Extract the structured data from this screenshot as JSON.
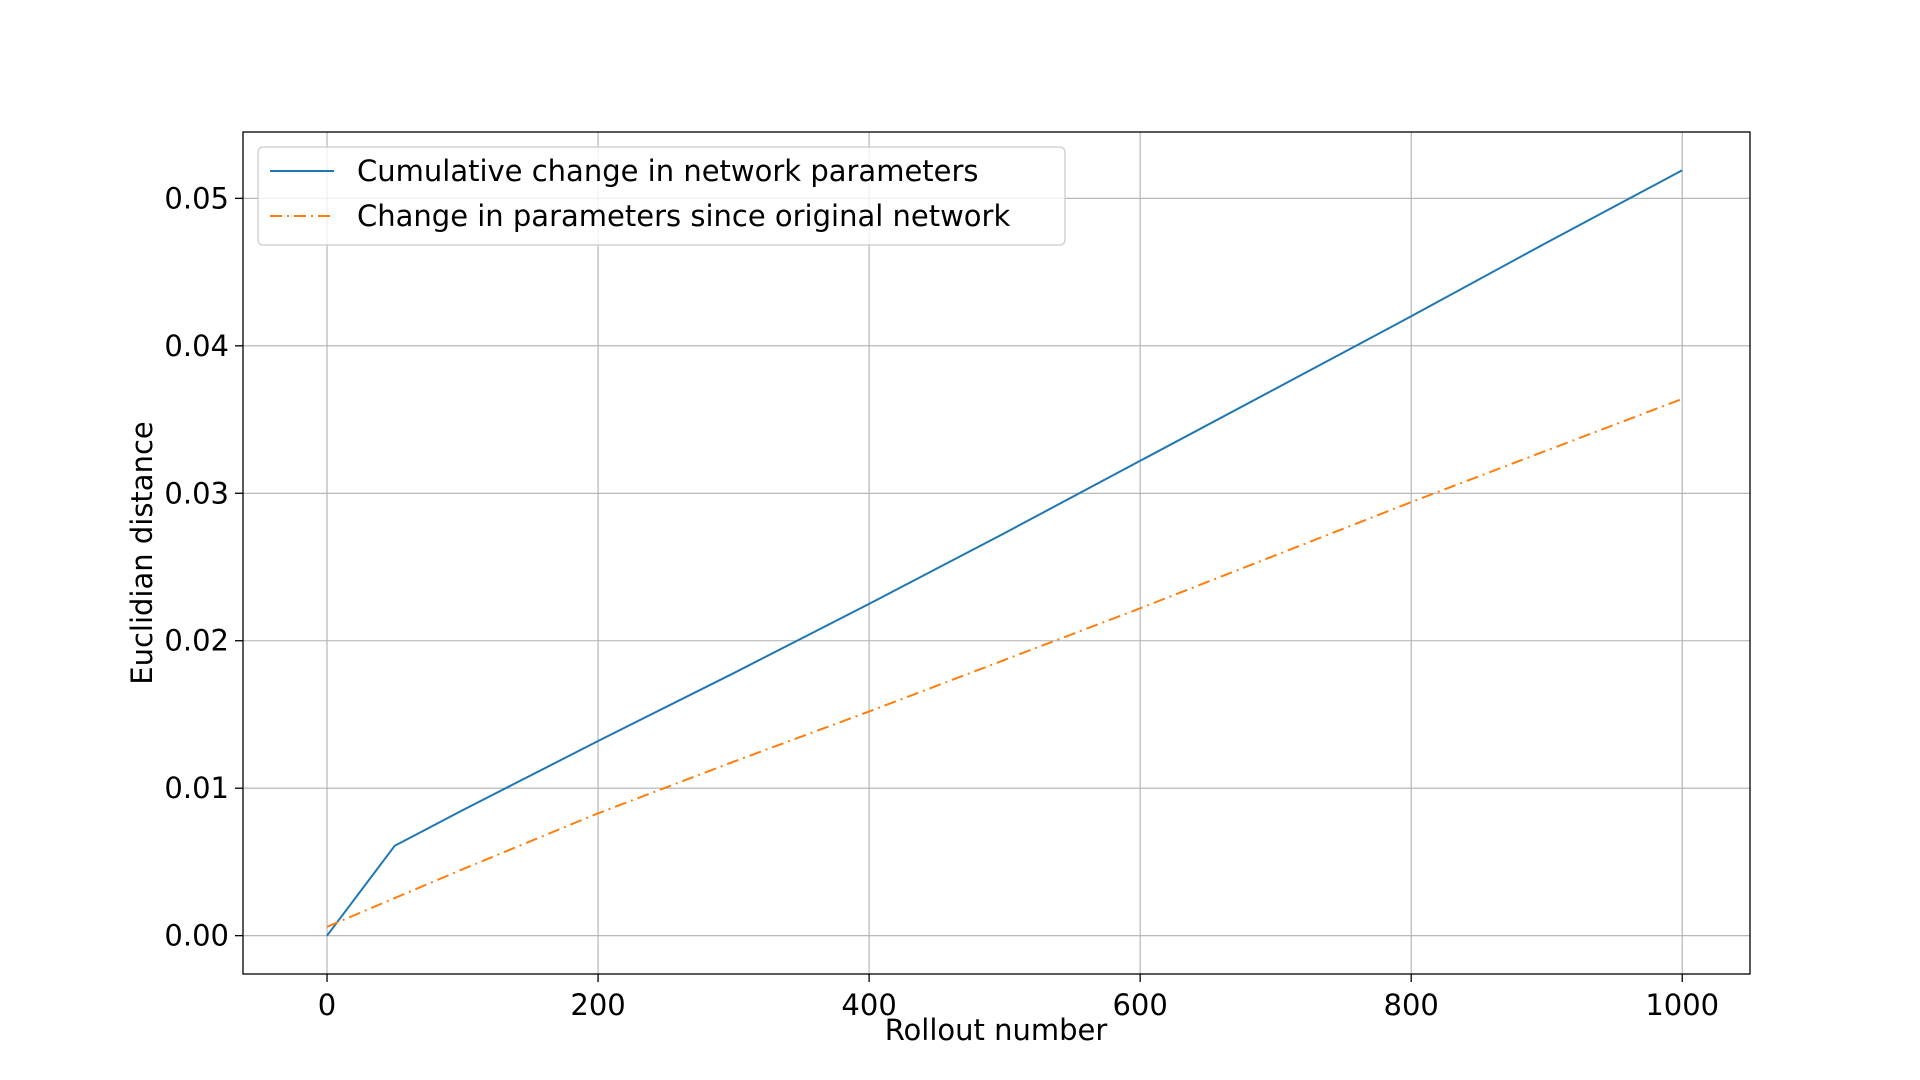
{
  "chart_data": {
    "type": "line",
    "title": "",
    "xlabel": "Rollout number",
    "ylabel": "Euclidian distance",
    "xlim": [
      -62,
      1050
    ],
    "ylim": [
      -0.0026,
      0.0545
    ],
    "xticks": [
      0,
      200,
      400,
      600,
      800,
      1000
    ],
    "xtick_labels": [
      "0",
      "200",
      "400",
      "600",
      "800",
      "1000"
    ],
    "yticks": [
      0.0,
      0.01,
      0.02,
      0.03,
      0.04,
      0.05
    ],
    "ytick_labels": [
      "0.00",
      "0.01",
      "0.02",
      "0.03",
      "0.04",
      "0.05"
    ],
    "grid": true,
    "legend_position": "top-left",
    "series": [
      {
        "name": "Cumulative change in network parameters",
        "color": "#1f77b4",
        "style": "solid",
        "x": [
          0,
          50,
          100,
          200,
          300,
          400,
          500,
          600,
          700,
          800,
          900,
          1000
        ],
        "y": [
          0.0,
          0.0061,
          0.0085,
          0.0132,
          0.0178,
          0.0225,
          0.0273,
          0.0322,
          0.0371,
          0.042,
          0.047,
          0.0519
        ]
      },
      {
        "name": "Change in parameters since original network",
        "color": "#ff7f0e",
        "style": "dashdot",
        "x": [
          0,
          100,
          200,
          300,
          400,
          500,
          600,
          700,
          800,
          900,
          1000
        ],
        "y": [
          0.0006,
          0.0045,
          0.0083,
          0.0118,
          0.0152,
          0.0187,
          0.0222,
          0.0258,
          0.0294,
          0.0329,
          0.0364
        ]
      }
    ]
  }
}
